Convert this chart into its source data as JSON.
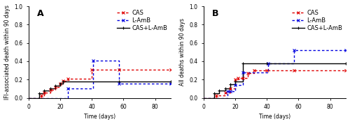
{
  "panel_A": {
    "label": "A",
    "ylabel": "IFI-associated death within 90 days",
    "xlabel": "Time (days)",
    "ylim": [
      0,
      1.0
    ],
    "xlim": [
      0,
      90
    ],
    "yticks": [
      0.0,
      0.2,
      0.4,
      0.6,
      0.8,
      1.0
    ],
    "xticks": [
      0,
      20,
      40,
      60,
      80
    ],
    "series": {
      "CAS": {
        "color": "#e00000",
        "linestyle": "dotted",
        "marker": "x",
        "jumps": [
          [
            8,
            0.03
          ],
          [
            10,
            0.06
          ],
          [
            14,
            0.09
          ],
          [
            17,
            0.12
          ],
          [
            20,
            0.16
          ],
          [
            22,
            0.19
          ],
          [
            25,
            0.21
          ],
          [
            40,
            0.31
          ],
          [
            57,
            0.31
          ],
          [
            90,
            0.31
          ]
        ]
      },
      "L-AmB": {
        "color": "#0000e0",
        "linestyle": "dotted",
        "marker": "x",
        "jumps": [
          [
            25,
            0.1
          ],
          [
            41,
            0.41
          ],
          [
            57,
            0.16
          ],
          [
            90,
            0.16
          ]
        ]
      },
      "CAS+L-AmB": {
        "color": "#000000",
        "linestyle": "solid",
        "marker": "+",
        "jumps": [
          [
            7,
            0.05
          ],
          [
            10,
            0.08
          ],
          [
            14,
            0.1
          ],
          [
            17,
            0.13
          ],
          [
            20,
            0.16
          ],
          [
            22,
            0.18
          ],
          [
            57,
            0.18
          ],
          [
            90,
            0.18
          ]
        ]
      }
    }
  },
  "panel_B": {
    "label": "B",
    "ylabel": "All deaths within 90 days",
    "xlabel": "Time (days)",
    "ylim": [
      0,
      1.0
    ],
    "xlim": [
      0,
      90
    ],
    "yticks": [
      0.0,
      0.2,
      0.4,
      0.6,
      0.8,
      1.0
    ],
    "xticks": [
      0,
      20,
      40,
      60,
      80
    ],
    "series": {
      "CAS": {
        "color": "#e00000",
        "linestyle": "dotted",
        "marker": "x",
        "jumps": [
          [
            8,
            0.03
          ],
          [
            14,
            0.06
          ],
          [
            17,
            0.1
          ],
          [
            20,
            0.2
          ],
          [
            22,
            0.22
          ],
          [
            25,
            0.22
          ],
          [
            28,
            0.27
          ],
          [
            32,
            0.3
          ],
          [
            40,
            0.3
          ],
          [
            57,
            0.3
          ],
          [
            90,
            0.3
          ]
        ]
      },
      "L-AmB": {
        "color": "#0000e0",
        "linestyle": "dotted",
        "marker": "x",
        "jumps": [
          [
            15,
            0.07
          ],
          [
            17,
            0.07
          ],
          [
            20,
            0.14
          ],
          [
            25,
            0.28
          ],
          [
            41,
            0.38
          ],
          [
            57,
            0.52
          ],
          [
            90,
            0.52
          ]
        ]
      },
      "CAS+L-AmB": {
        "color": "#000000",
        "linestyle": "solid",
        "marker": "+",
        "jumps": [
          [
            7,
            0.05
          ],
          [
            10,
            0.08
          ],
          [
            14,
            0.1
          ],
          [
            17,
            0.15
          ],
          [
            20,
            0.18
          ],
          [
            25,
            0.38
          ],
          [
            40,
            0.38
          ],
          [
            90,
            0.38
          ]
        ]
      }
    }
  },
  "legend_order": [
    "CAS",
    "L-AmB",
    "CAS+L-AmB"
  ],
  "background_color": "#ffffff",
  "legend_fontsize": 6.0,
  "axis_label_fontsize": 5.5,
  "tick_fontsize": 5.5,
  "panel_label_fontsize": 9
}
